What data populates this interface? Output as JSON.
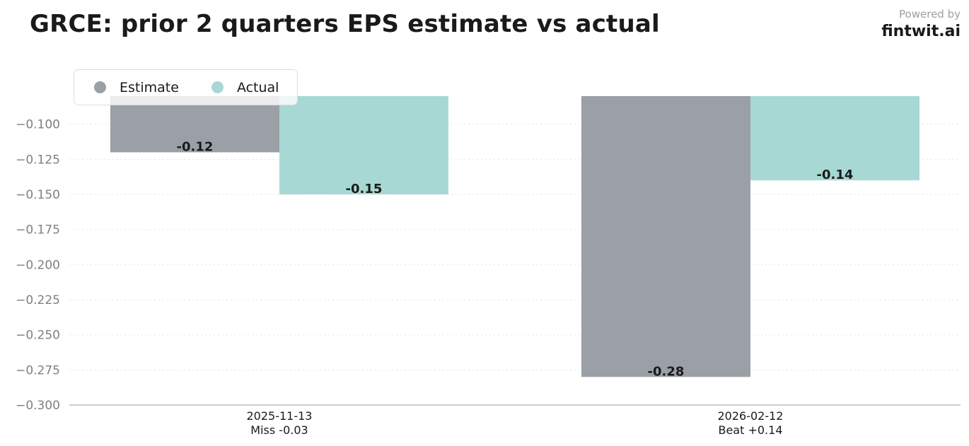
{
  "title": "GRCE: prior 2 quarters EPS estimate vs actual",
  "brand": {
    "powered_by": "Powered by",
    "name": "fintwit.ai"
  },
  "colors": {
    "estimate": "#9b9fa6",
    "actual": "#a8d8d4",
    "grid": "#e3e3e3",
    "axis": "#bdbdbd"
  },
  "chart_data": {
    "type": "bar",
    "categories": [
      [
        "2025-11-13",
        "Miss -0.03"
      ],
      [
        "2026-02-12",
        "Beat +0.14"
      ]
    ],
    "series": [
      {
        "name": "Estimate",
        "values": [
          -0.12,
          -0.28
        ],
        "labels": [
          "-0.12",
          "-0.28"
        ]
      },
      {
        "name": "Actual",
        "values": [
          -0.15,
          -0.14
        ],
        "labels": [
          "-0.15",
          "-0.14"
        ]
      }
    ],
    "ylim": [
      -0.3,
      -0.08
    ],
    "yticks": [
      -0.1,
      -0.125,
      -0.15,
      -0.175,
      -0.2,
      -0.225,
      -0.25,
      -0.275,
      -0.3
    ],
    "ytick_labels": [
      "−0.100",
      "−0.125",
      "−0.150",
      "−0.175",
      "−0.200",
      "−0.225",
      "−0.250",
      "−0.275",
      "−0.300"
    ],
    "grid": true,
    "legend_position": "top-left"
  }
}
